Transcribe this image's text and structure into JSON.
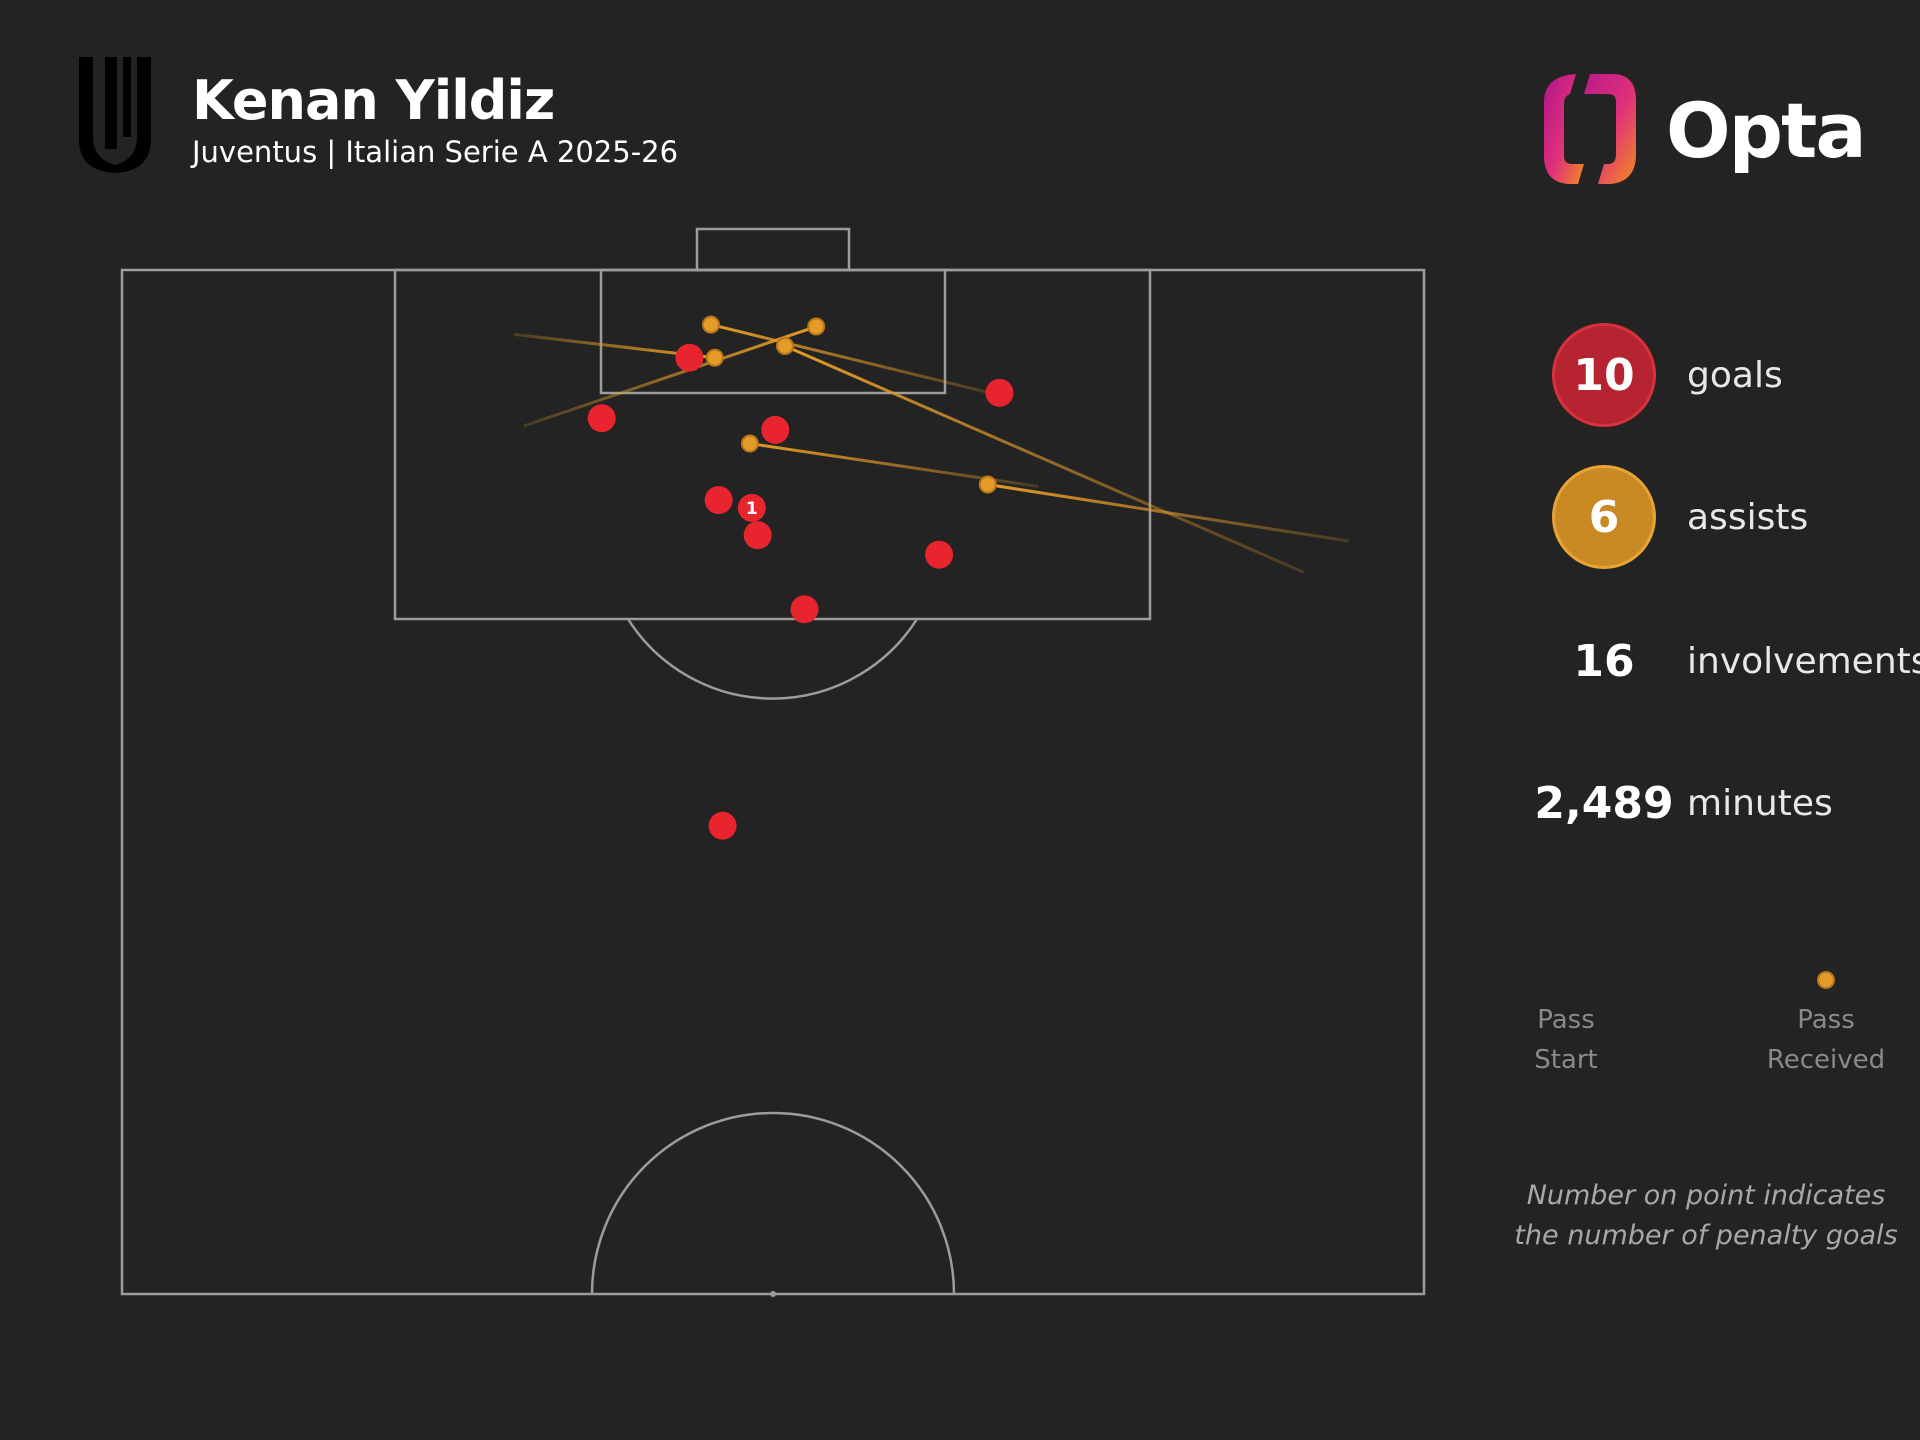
{
  "header": {
    "player_name": "Kenan Yildiz",
    "subtitle": "Juventus | Italian Serie A 2025-26",
    "club_logo_icon": "juventus-crest-icon",
    "brand_logo_icon": "opta-logo-icon",
    "brand_name": "Opta"
  },
  "stats": {
    "goals": {
      "value": "10",
      "label": "goals",
      "color": "#b52430"
    },
    "assists": {
      "value": "6",
      "label": "assists",
      "color": "#c98a23"
    },
    "involvements": {
      "value": "16",
      "label": "involvements"
    },
    "minutes": {
      "value": "2,489",
      "label": "minutes"
    }
  },
  "legend": {
    "start_label_1": "Pass",
    "start_label_2": "Start",
    "end_label_1": "Pass",
    "end_label_2": "Received"
  },
  "note": {
    "line1": "Number on point indicates",
    "line2": "the number of penalty goals"
  },
  "chart_data": {
    "type": "scatter",
    "description_units": "pitch coordinates: x = distance from left touchline (0-68), y = distance from goal line being attacked (0-52.5)",
    "colors": {
      "goal": "#e8242f",
      "assist": "#e49b27",
      "pitch_lines": "#9c9c9c",
      "background": "#232323"
    },
    "goals": [
      {
        "x": 29.1,
        "y": 4.5
      },
      {
        "x": 24.6,
        "y": 7.6
      },
      {
        "x": 33.5,
        "y": 8.2
      },
      {
        "x": 45.0,
        "y": 6.3
      },
      {
        "x": 30.6,
        "y": 11.8
      },
      {
        "x": 32.3,
        "y": 12.2,
        "penalty_goals": 1
      },
      {
        "x": 32.6,
        "y": 13.6
      },
      {
        "x": 41.9,
        "y": 14.6
      },
      {
        "x": 35.0,
        "y": 17.4
      },
      {
        "x": 30.8,
        "y": 28.5
      }
    ],
    "assists": [
      {
        "start": {
          "x": 20.1,
          "y": 3.3
        },
        "end": {
          "x": 30.4,
          "y": 4.5
        }
      },
      {
        "start": {
          "x": 44.5,
          "y": 6.3
        },
        "end": {
          "x": 30.2,
          "y": 2.8
        }
      },
      {
        "start": {
          "x": 20.6,
          "y": 8.0
        },
        "end": {
          "x": 35.6,
          "y": 2.9
        }
      },
      {
        "start": {
          "x": 60.6,
          "y": 15.5
        },
        "end": {
          "x": 34.0,
          "y": 3.9
        }
      },
      {
        "start": {
          "x": 62.9,
          "y": 13.9
        },
        "end": {
          "x": 44.4,
          "y": 11.0
        }
      },
      {
        "start": {
          "x": 47.0,
          "y": 11.1
        },
        "end": {
          "x": 32.2,
          "y": 8.9
        }
      }
    ]
  }
}
